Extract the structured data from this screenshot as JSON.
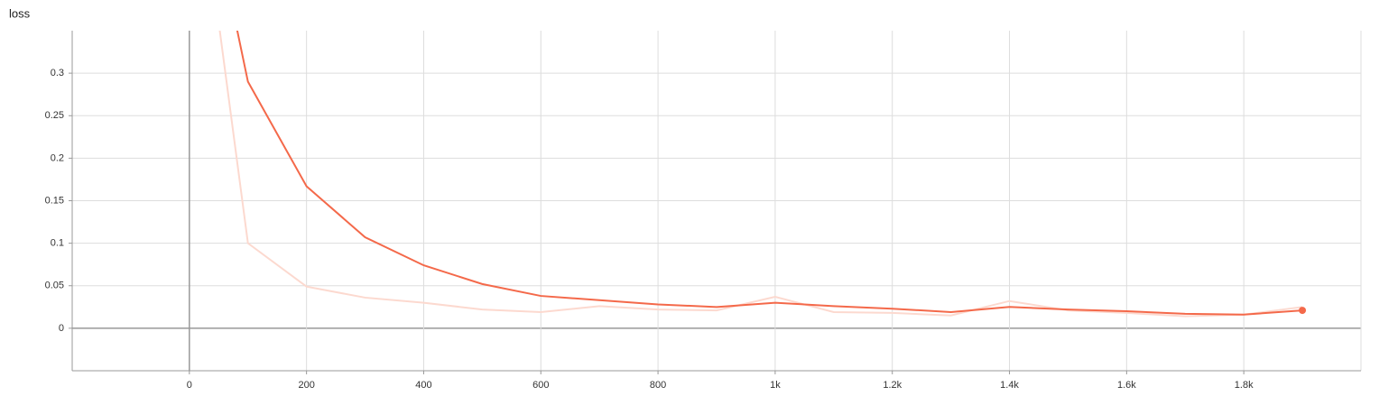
{
  "chart_data": {
    "type": "line",
    "title": "loss",
    "x": [
      0,
      100,
      200,
      300,
      400,
      500,
      600,
      700,
      800,
      900,
      1000,
      1100,
      1200,
      1300,
      1400,
      1500,
      1600,
      1700,
      1800,
      1900
    ],
    "series": [
      {
        "color": "#fcd9cf",
        "values": [
          0.62,
          0.1,
          0.049,
          0.036,
          0.03,
          0.022,
          0.019,
          0.026,
          0.022,
          0.021,
          0.037,
          0.019,
          0.018,
          0.015,
          0.032,
          0.021,
          0.018,
          0.014,
          0.016,
          0.025
        ]
      },
      {
        "color": "#f4694a",
        "values": [
          0.62,
          0.29,
          0.167,
          0.107,
          0.074,
          0.052,
          0.038,
          0.033,
          0.028,
          0.025,
          0.03,
          0.026,
          0.023,
          0.019,
          0.025,
          0.022,
          0.02,
          0.017,
          0.016,
          0.021
        ]
      }
    ],
    "xlim": [
      -200,
      2000
    ],
    "xticks": [
      0,
      200,
      400,
      600,
      800,
      {
        "value": 1000,
        "label": "1k"
      },
      {
        "value": 1200,
        "label": "1.2k"
      },
      {
        "value": 1400,
        "label": "1.4k"
      },
      {
        "value": 1600,
        "label": "1.6k"
      },
      {
        "value": 1800,
        "label": "1.8k"
      }
    ],
    "ylim": [
      -0.05,
      0.35
    ],
    "yticks": [
      0,
      0.05,
      0.1,
      0.15,
      0.2,
      0.25,
      0.3
    ],
    "grid": true
  }
}
